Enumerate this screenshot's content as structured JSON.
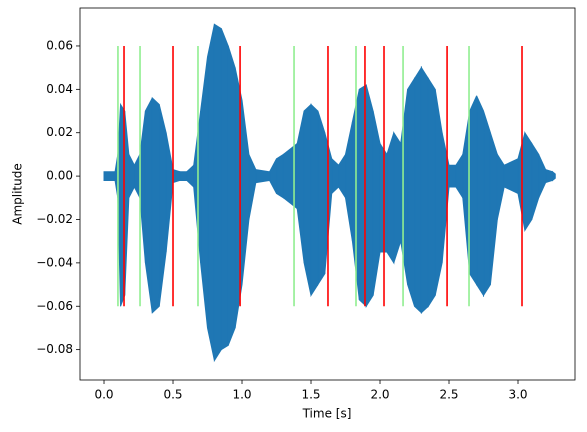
{
  "chart_data": {
    "type": "waveform",
    "xlabel": "Time [s]",
    "ylabel": "Amplitude",
    "xlim": [
      -0.174,
      3.413
    ],
    "ylim": [
      -0.094,
      0.0775
    ],
    "xticks": [
      {
        "value": 0,
        "label": "0.0"
      },
      0.5,
      {
        "value": 1,
        "label": "1.0"
      },
      1.5,
      {
        "value": 2,
        "label": "2.0"
      },
      2.5,
      {
        "value": 3,
        "label": "3.0"
      }
    ],
    "yticks": [
      {
        "value": -0.08,
        "label": "−0.08"
      },
      {
        "value": -0.06,
        "label": "−0.06"
      },
      {
        "value": -0.04,
        "label": "−0.04"
      },
      {
        "value": -0.02,
        "label": "−0.02"
      },
      {
        "value": 0,
        "label": "0.00"
      },
      0.02,
      0.04,
      0.06
    ],
    "color": "#1f77b4",
    "x": [
      0,
      0.08,
      0.1,
      0.12,
      0.15,
      0.18,
      0.22,
      0.26,
      0.3,
      0.35,
      0.4,
      0.45,
      0.5,
      0.55,
      0.6,
      0.65,
      0.7,
      0.75,
      0.8,
      0.85,
      0.9,
      0.95,
      1.0,
      1.05,
      1.1,
      1.2,
      1.25,
      1.3,
      1.4,
      1.45,
      1.5,
      1.55,
      1.6,
      1.65,
      1.7,
      1.75,
      1.8,
      1.85,
      1.9,
      1.95,
      2.0,
      2.05,
      2.1,
      2.15,
      2.2,
      2.25,
      2.3,
      2.35,
      2.4,
      2.45,
      2.5,
      2.55,
      2.6,
      2.65,
      2.7,
      2.75,
      2.8,
      2.85,
      2.9,
      3.0,
      3.05,
      3.1,
      3.15,
      3.2,
      3.25,
      3.27
    ],
    "upper": [
      0.002,
      0.002,
      0.01,
      0.033,
      0.03,
      0.01,
      0.005,
      0.01,
      0.03,
      0.036,
      0.033,
      0.02,
      0.003,
      0.002,
      0.002,
      0.005,
      0.03,
      0.055,
      0.07,
      0.068,
      0.06,
      0.05,
      0.035,
      0.01,
      0.003,
      0.002,
      0.008,
      0.01,
      0.015,
      0.03,
      0.033,
      0.03,
      0.02,
      0.008,
      0.005,
      0.01,
      0.025,
      0.04,
      0.042,
      0.03,
      0.015,
      0.01,
      0.02,
      0.015,
      0.04,
      0.045,
      0.05,
      0.045,
      0.04,
      0.02,
      0.005,
      0.005,
      0.01,
      0.03,
      0.037,
      0.03,
      0.02,
      0.01,
      0.005,
      0.008,
      0.02,
      0.015,
      0.01,
      0.003,
      0.002,
      0.001
    ],
    "lower": [
      -0.002,
      -0.002,
      -0.01,
      -0.06,
      -0.055,
      -0.01,
      -0.005,
      -0.01,
      -0.04,
      -0.063,
      -0.06,
      -0.035,
      -0.003,
      -0.002,
      -0.002,
      -0.005,
      -0.04,
      -0.07,
      -0.085,
      -0.08,
      -0.078,
      -0.07,
      -0.05,
      -0.02,
      -0.003,
      -0.002,
      -0.008,
      -0.01,
      -0.015,
      -0.04,
      -0.055,
      -0.05,
      -0.045,
      -0.008,
      -0.005,
      -0.01,
      -0.03,
      -0.057,
      -0.06,
      -0.055,
      -0.035,
      -0.035,
      -0.04,
      -0.03,
      -0.05,
      -0.06,
      -0.063,
      -0.06,
      -0.055,
      -0.04,
      -0.005,
      -0.005,
      -0.01,
      -0.045,
      -0.05,
      -0.055,
      -0.05,
      -0.02,
      -0.005,
      -0.008,
      -0.025,
      -0.02,
      -0.01,
      -0.003,
      -0.002,
      -0.001
    ],
    "marker_span": [
      -0.06,
      0.06
    ],
    "marker_series": [
      {
        "color": "#90ee90",
        "x": [
          0.101,
          0.261,
          0.681,
          1.377,
          1.826,
          2.167,
          2.645
        ]
      },
      {
        "color": "#ff0000",
        "x": [
          0.145,
          0.5,
          0.986,
          1.623,
          1.891,
          2.029,
          2.486,
          3.029
        ]
      }
    ]
  }
}
